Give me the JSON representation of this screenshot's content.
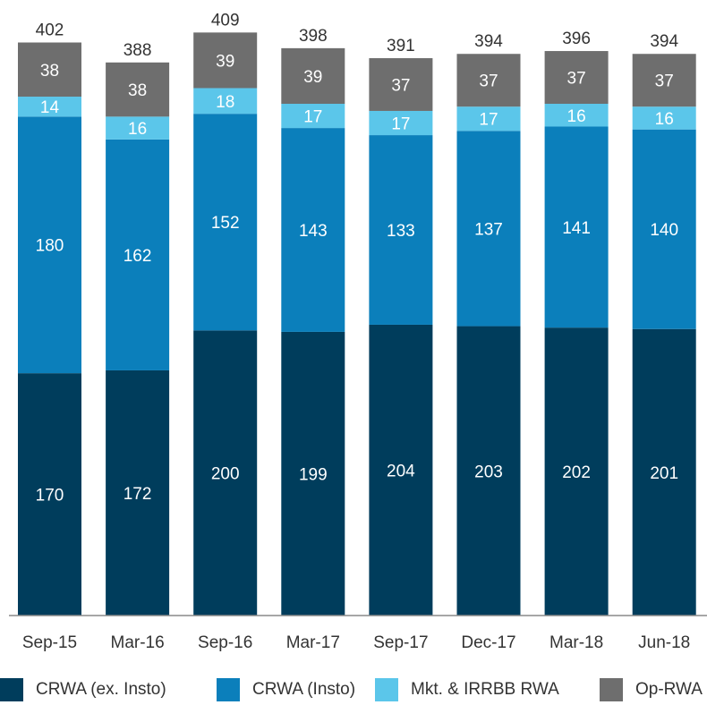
{
  "chart_data": {
    "type": "bar",
    "stacked": true,
    "categories": [
      "Sep-15",
      "Mar-16",
      "Sep-16",
      "Mar-17",
      "Sep-17",
      "Dec-17",
      "Mar-18",
      "Jun-18"
    ],
    "series": [
      {
        "name": "CRWA (ex. Insto)",
        "color": "#003d5c",
        "label_color": "#ffffff",
        "values": [
          170,
          172,
          200,
          199,
          204,
          203,
          202,
          201
        ]
      },
      {
        "name": "CRWA (Insto)",
        "color": "#0b7fbb",
        "label_color": "#ffffff",
        "values": [
          180,
          162,
          152,
          143,
          133,
          137,
          141,
          140
        ]
      },
      {
        "name": "Mkt. & IRRBB RWA",
        "color": "#5bc6ea",
        "label_color": "#ffffff",
        "values": [
          14,
          16,
          18,
          17,
          17,
          17,
          16,
          16
        ]
      },
      {
        "name": "Op-RWA",
        "color": "#6e6e6e",
        "label_color": "#ffffff",
        "values": [
          38,
          38,
          39,
          39,
          37,
          37,
          37,
          37
        ]
      }
    ],
    "totals": [
      "402",
      "388",
      "409",
      "398",
      "391",
      "394",
      "396",
      "394"
    ],
    "legend_position": "bottom",
    "grid": false
  },
  "legend": {
    "items": [
      {
        "label": "CRWA (ex. Insto)",
        "color": "#003d5c"
      },
      {
        "label": "CRWA (Insto)",
        "color": "#0b7fbb"
      },
      {
        "label": "Mkt. & IRRBB RWA",
        "color": "#5bc6ea"
      },
      {
        "label": "Op-RWA",
        "color": "#6e6e6e"
      }
    ]
  }
}
